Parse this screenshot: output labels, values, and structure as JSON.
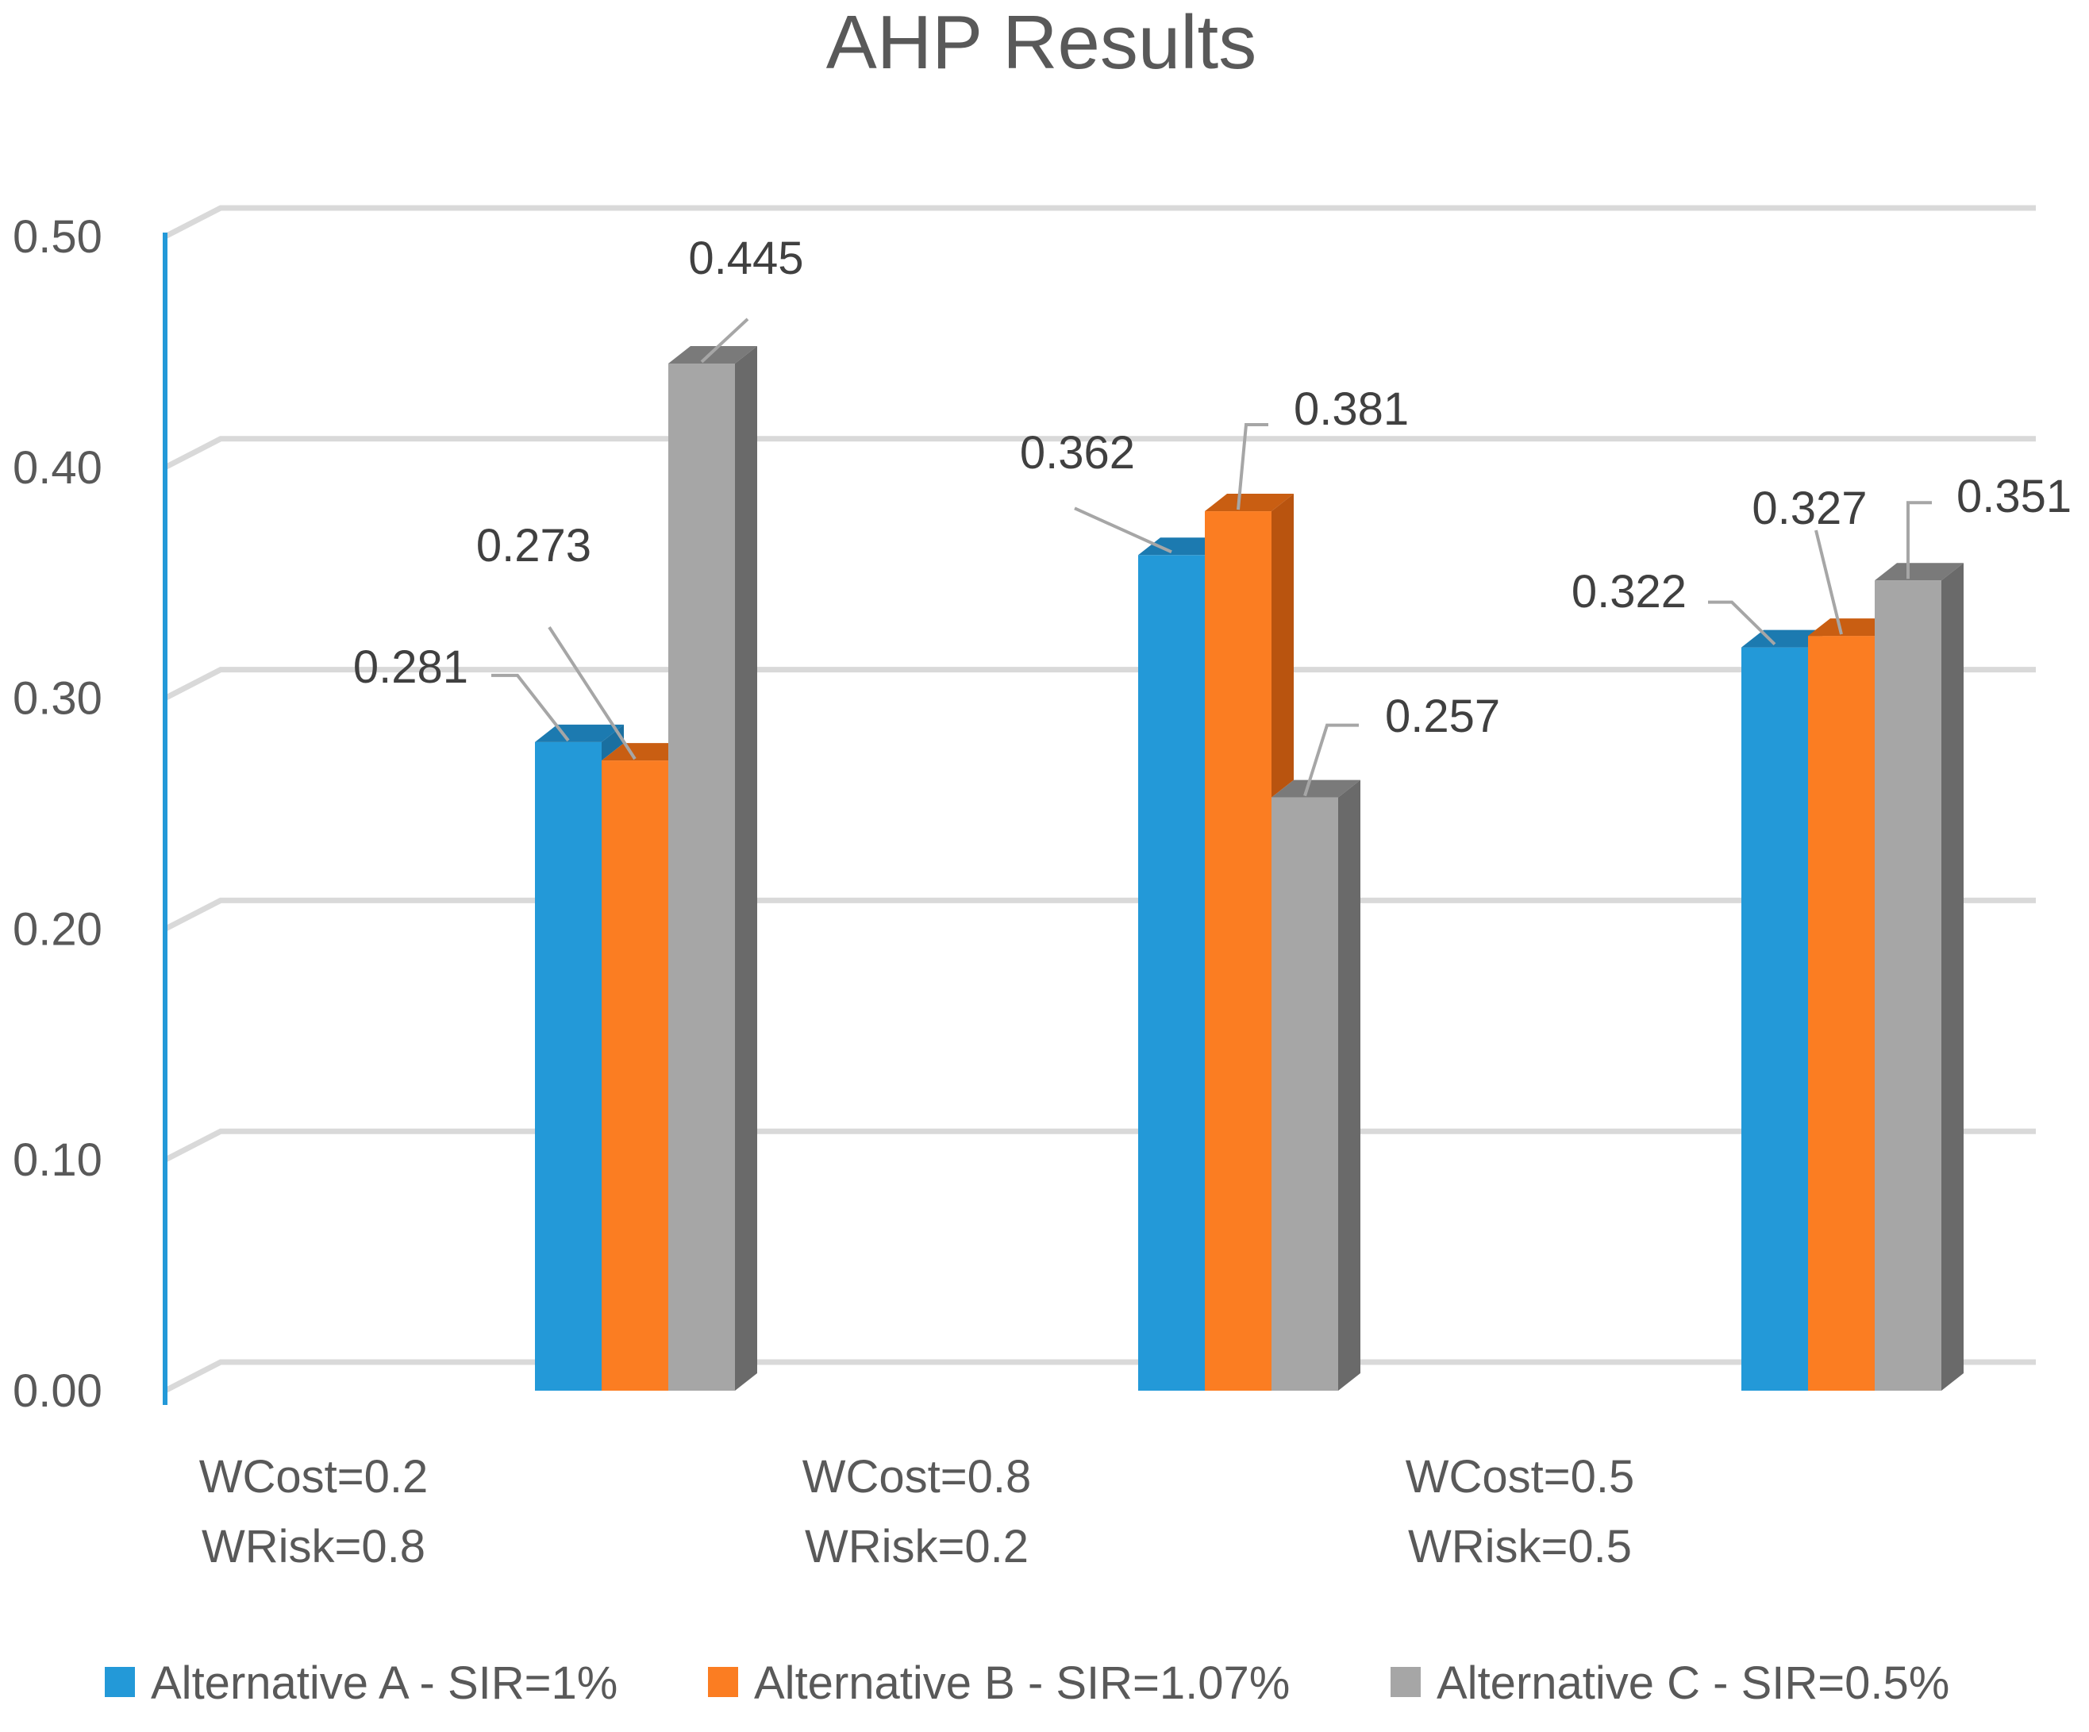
{
  "chart_data": {
    "type": "bar",
    "style": "3d-clustered-column",
    "title": "AHP Results",
    "xlabel": "",
    "ylabel": "",
    "ylim": [
      0,
      0.5
    ],
    "yticks": [
      "0.00",
      "0.10",
      "0.20",
      "0.30",
      "0.40",
      "0.50"
    ],
    "categories": [
      {
        "line1": "WCost=0.2",
        "line2": "WRisk=0.8"
      },
      {
        "line1": "WCost=0.8",
        "line2": "WRisk=0.2"
      },
      {
        "line1": "WCost=0.5",
        "line2": "WRisk=0.5"
      }
    ],
    "series": [
      {
        "name": "Alternative A - SIR=1%",
        "color": "#2399d8",
        "top_color": "#1c7ab0",
        "side_color": "#1a6fa0",
        "values": [
          0.281,
          0.362,
          0.322
        ],
        "labels": [
          "0.281",
          "0.362",
          "0.322"
        ]
      },
      {
        "name": "Alternative B - SIR=1.07%",
        "color": "#fb7d22",
        "top_color": "#c95e12",
        "side_color": "#b9540f",
        "values": [
          0.273,
          0.381,
          0.327
        ],
        "labels": [
          "0.273",
          "0.381",
          "0.327"
        ]
      },
      {
        "name": "Alternative C - SIR=0.5%",
        "color": "#a6a6a6",
        "top_color": "#7a7a7a",
        "side_color": "#6a6a6a",
        "values": [
          0.445,
          0.257,
          0.351
        ],
        "labels": [
          "0.445",
          "0.257",
          "0.351"
        ]
      }
    ],
    "legend_position": "bottom",
    "grid": true,
    "axis_color": "#2399d8"
  }
}
